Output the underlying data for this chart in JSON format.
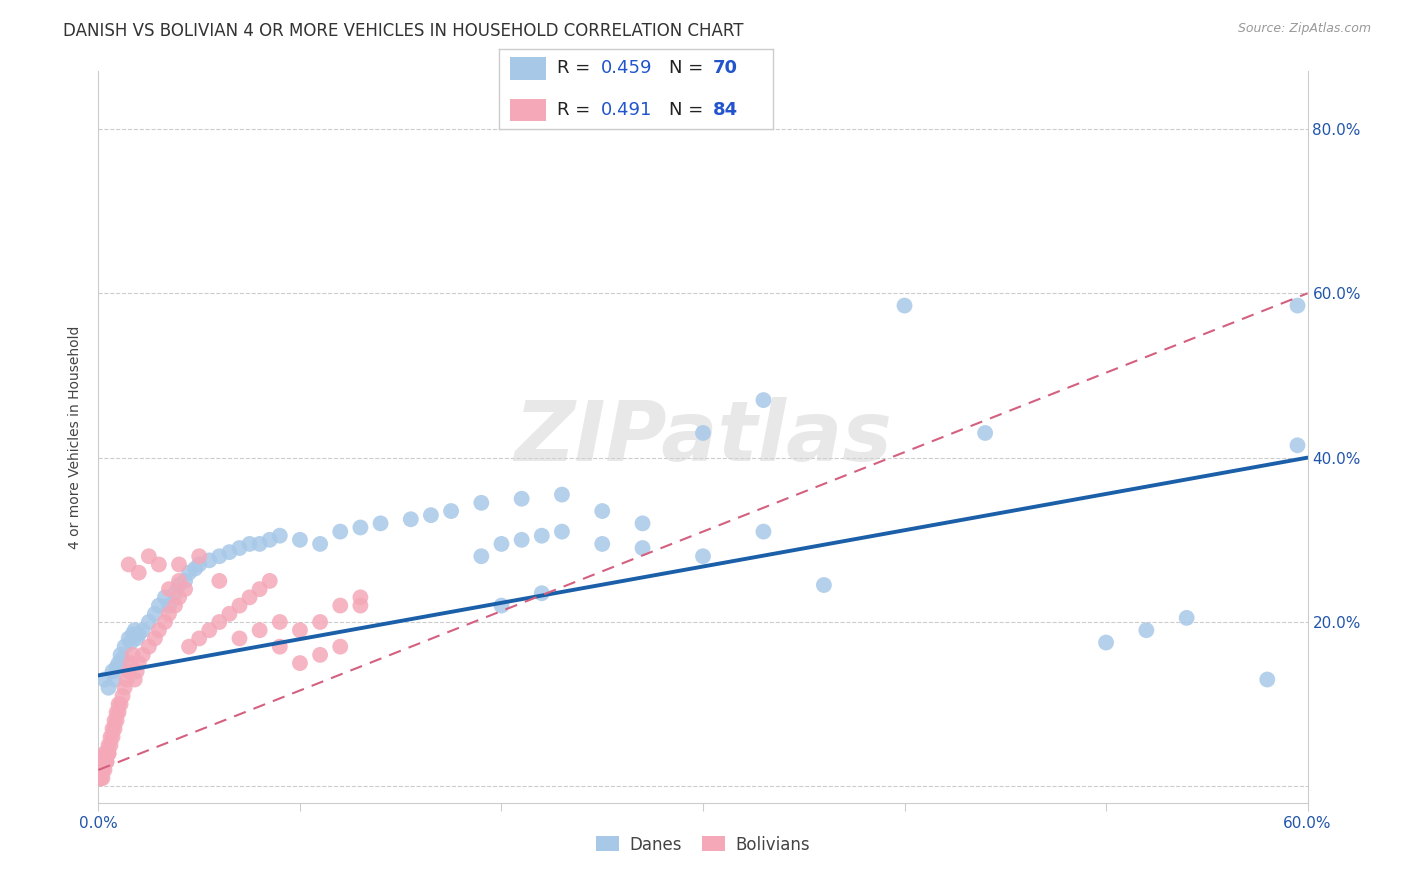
{
  "title": "DANISH VS BOLIVIAN 4 OR MORE VEHICLES IN HOUSEHOLD CORRELATION CHART",
  "source": "Source: ZipAtlas.com",
  "ylabel": "4 or more Vehicles in Household",
  "xlim": [
    0.0,
    0.6
  ],
  "ylim": [
    -0.02,
    0.87
  ],
  "xtick_positions": [
    0.0,
    0.1,
    0.2,
    0.3,
    0.4,
    0.5,
    0.6
  ],
  "xticklabels": [
    "0.0%",
    "",
    "",
    "",
    "",
    "",
    "60.0%"
  ],
  "ytick_positions": [
    0.0,
    0.2,
    0.4,
    0.6,
    0.8
  ],
  "yticklabels": [
    "",
    "20.0%",
    "40.0%",
    "60.0%",
    "80.0%"
  ],
  "danes_color": "#a8c8e8",
  "bolivians_color": "#f4a8b8",
  "danes_line_color": "#1a5fa8",
  "bolivians_line_color": "#d46080",
  "danes_R": 0.459,
  "danes_N": 70,
  "bolivians_R": 0.491,
  "bolivians_N": 84,
  "watermark": "ZIPatlas",
  "danes_x": [
    0.003,
    0.005,
    0.007,
    0.008,
    0.009,
    0.01,
    0.011,
    0.012,
    0.013,
    0.015,
    0.016,
    0.017,
    0.018,
    0.019,
    0.02,
    0.022,
    0.025,
    0.028,
    0.03,
    0.033,
    0.035,
    0.038,
    0.04,
    0.043,
    0.045,
    0.048,
    0.05,
    0.055,
    0.06,
    0.065,
    0.07,
    0.075,
    0.08,
    0.085,
    0.09,
    0.1,
    0.11,
    0.12,
    0.13,
    0.14,
    0.155,
    0.165,
    0.175,
    0.19,
    0.2,
    0.21,
    0.22,
    0.23,
    0.25,
    0.27,
    0.19,
    0.21,
    0.23,
    0.25,
    0.27,
    0.3,
    0.33,
    0.36,
    0.2,
    0.22,
    0.44,
    0.3,
    0.33,
    0.5,
    0.52,
    0.54,
    0.4,
    0.58,
    0.595,
    0.595
  ],
  "danes_y": [
    0.13,
    0.12,
    0.14,
    0.13,
    0.145,
    0.15,
    0.16,
    0.155,
    0.17,
    0.18,
    0.175,
    0.185,
    0.19,
    0.18,
    0.185,
    0.19,
    0.2,
    0.21,
    0.22,
    0.23,
    0.22,
    0.235,
    0.245,
    0.25,
    0.26,
    0.265,
    0.27,
    0.275,
    0.28,
    0.285,
    0.29,
    0.295,
    0.295,
    0.3,
    0.305,
    0.3,
    0.295,
    0.31,
    0.315,
    0.32,
    0.325,
    0.33,
    0.335,
    0.28,
    0.295,
    0.3,
    0.305,
    0.31,
    0.295,
    0.29,
    0.345,
    0.35,
    0.355,
    0.335,
    0.32,
    0.28,
    0.31,
    0.245,
    0.22,
    0.235,
    0.43,
    0.43,
    0.47,
    0.175,
    0.19,
    0.205,
    0.585,
    0.13,
    0.585,
    0.415
  ],
  "bolivians_x": [
    0.0,
    0.0,
    0.0,
    0.0,
    0.0,
    0.001,
    0.001,
    0.001,
    0.001,
    0.001,
    0.001,
    0.002,
    0.002,
    0.002,
    0.002,
    0.003,
    0.003,
    0.003,
    0.003,
    0.004,
    0.004,
    0.004,
    0.005,
    0.005,
    0.005,
    0.006,
    0.006,
    0.007,
    0.007,
    0.008,
    0.008,
    0.009,
    0.009,
    0.01,
    0.01,
    0.011,
    0.012,
    0.013,
    0.014,
    0.015,
    0.016,
    0.017,
    0.018,
    0.019,
    0.02,
    0.022,
    0.025,
    0.028,
    0.03,
    0.033,
    0.035,
    0.038,
    0.04,
    0.043,
    0.045,
    0.05,
    0.055,
    0.06,
    0.065,
    0.07,
    0.075,
    0.08,
    0.085,
    0.09,
    0.1,
    0.11,
    0.12,
    0.13,
    0.04,
    0.05,
    0.06,
    0.07,
    0.08,
    0.09,
    0.1,
    0.11,
    0.12,
    0.13,
    0.015,
    0.02,
    0.025,
    0.03,
    0.035,
    0.04
  ],
  "bolivians_y": [
    0.01,
    0.01,
    0.02,
    0.01,
    0.01,
    0.01,
    0.02,
    0.01,
    0.02,
    0.01,
    0.02,
    0.02,
    0.01,
    0.02,
    0.03,
    0.03,
    0.02,
    0.03,
    0.04,
    0.03,
    0.04,
    0.03,
    0.04,
    0.05,
    0.04,
    0.05,
    0.06,
    0.06,
    0.07,
    0.07,
    0.08,
    0.08,
    0.09,
    0.09,
    0.1,
    0.1,
    0.11,
    0.12,
    0.13,
    0.14,
    0.15,
    0.16,
    0.13,
    0.14,
    0.15,
    0.16,
    0.17,
    0.18,
    0.19,
    0.2,
    0.21,
    0.22,
    0.23,
    0.24,
    0.17,
    0.18,
    0.19,
    0.2,
    0.21,
    0.22,
    0.23,
    0.24,
    0.25,
    0.17,
    0.19,
    0.2,
    0.22,
    0.23,
    0.27,
    0.28,
    0.25,
    0.18,
    0.19,
    0.2,
    0.15,
    0.16,
    0.17,
    0.22,
    0.27,
    0.26,
    0.28,
    0.27,
    0.24,
    0.25
  ],
  "danes_line_x": [
    0.0,
    0.6
  ],
  "danes_line_y": [
    0.135,
    0.4
  ],
  "bolivians_line_x": [
    0.0,
    0.6
  ],
  "bolivians_line_y": [
    0.02,
    0.6
  ],
  "grid_color": "#cccccc",
  "background_color": "#ffffff",
  "title_fontsize": 12,
  "axis_label_fontsize": 10,
  "tick_fontsize": 11,
  "legend_fontsize": 13
}
